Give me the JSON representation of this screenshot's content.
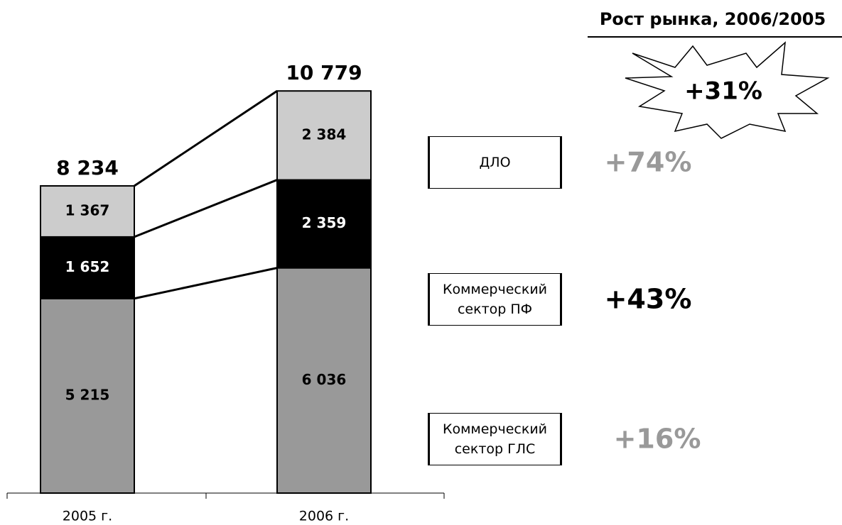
{
  "chart_data": {
    "type": "stacked_bar",
    "categories": [
      "2005 г.",
      "2006 г."
    ],
    "series": [
      {
        "name": "Коммерческий сектор ГЛС",
        "color": "#999999",
        "label_color": "#000000",
        "values": [
          5215,
          6036
        ],
        "value_labels": [
          "5 215",
          "6 036"
        ],
        "growth": 16,
        "growth_label": "+16%",
        "growth_color": "#999999"
      },
      {
        "name": "Коммерческий сектор ПФ",
        "color": "#000000",
        "label_color": "#ffffff",
        "values": [
          1652,
          2359
        ],
        "value_labels": [
          "1 652",
          "2 359"
        ],
        "growth": 43,
        "growth_label": "+43%",
        "growth_color": "#000000"
      },
      {
        "name": "ДЛО",
        "color": "#cccccc",
        "label_color": "#000000",
        "values": [
          1367,
          2384
        ],
        "value_labels": [
          "1 367",
          "2 384"
        ],
        "growth": 74,
        "growth_label": "+74%",
        "growth_color": "#999999"
      }
    ],
    "totals": [
      8234,
      10779
    ],
    "total_labels": [
      "8 234",
      "10 779"
    ],
    "ylim": [
      0,
      12000
    ],
    "market_growth": {
      "title": "Рост рынка, 2006/2005",
      "value": 31,
      "label": "+31%"
    }
  }
}
